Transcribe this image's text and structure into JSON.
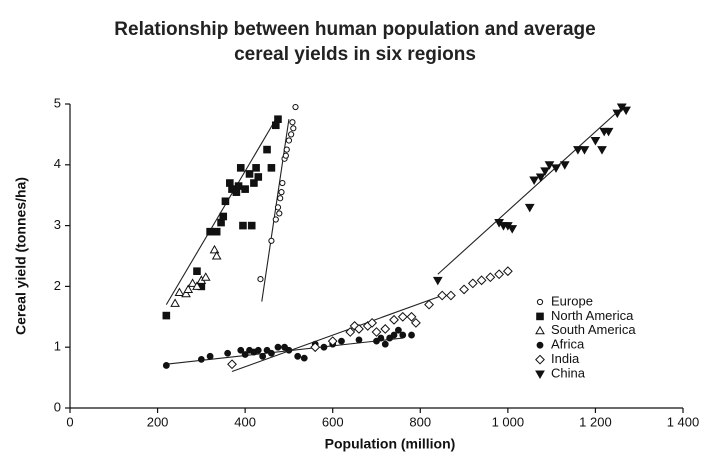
{
  "chart_data": {
    "type": "scatter",
    "title": [
      "Relationship between human population and average",
      "cereal yields in six regions"
    ],
    "xlabel": "Population (million)",
    "ylabel": "Cereal yield (tonnes/ha)",
    "xlim": [
      0,
      1400
    ],
    "ylim": [
      0,
      5
    ],
    "xticks": [
      0,
      200,
      400,
      600,
      800,
      {
        "value": 1000,
        "label": "1 000"
      },
      {
        "value": 1200,
        "label": "1 200"
      },
      {
        "value": 1400,
        "label": "1 400"
      }
    ],
    "yticks": [
      0,
      1,
      2,
      3,
      4,
      5
    ],
    "legend": "right",
    "series": [
      {
        "name": "Europe",
        "marker": "circle-open",
        "color": "#111",
        "x": [
          435,
          460,
          470,
          475,
          478,
          480,
          483,
          485,
          490,
          493,
          495,
          500,
          505,
          508,
          510,
          515
        ],
        "values": [
          2.12,
          2.75,
          3.1,
          3.3,
          3.2,
          3.45,
          3.55,
          3.7,
          4.1,
          4.15,
          4.25,
          4.4,
          4.5,
          4.7,
          4.6,
          4.95
        ],
        "trend_x": [
          438,
          500
        ],
        "trend_y": [
          1.75,
          4.75
        ]
      },
      {
        "name": "North America",
        "marker": "square",
        "color": "#111",
        "x": [
          220,
          290,
          300,
          320,
          335,
          345,
          350,
          355,
          365,
          370,
          380,
          385,
          390,
          395,
          400,
          410,
          415,
          420,
          425,
          430,
          450,
          460,
          470,
          475
        ],
        "values": [
          1.52,
          2.25,
          2.0,
          2.9,
          2.9,
          3.05,
          3.15,
          3.4,
          3.7,
          3.6,
          3.55,
          3.65,
          3.95,
          3.0,
          3.6,
          3.85,
          3.0,
          3.7,
          3.95,
          3.8,
          4.25,
          3.95,
          4.65,
          4.75
        ],
        "trend_x": [
          220,
          470
        ],
        "trend_y": [
          1.7,
          4.75
        ]
      },
      {
        "name": "South America",
        "marker": "triangle-open",
        "color": "#111",
        "x": [
          240,
          250,
          265,
          270,
          280,
          290,
          300,
          310,
          330,
          335
        ],
        "values": [
          1.72,
          1.9,
          1.88,
          1.95,
          2.05,
          2.0,
          2.1,
          2.15,
          2.6,
          2.5
        ]
      },
      {
        "name": "Africa",
        "marker": "circle",
        "color": "#111",
        "x": [
          220,
          300,
          320,
          360,
          390,
          400,
          410,
          420,
          430,
          440,
          450,
          460,
          475,
          490,
          500,
          520,
          535,
          560,
          580,
          600,
          620,
          660,
          700,
          710,
          720,
          730,
          740,
          750,
          760,
          780
        ],
        "values": [
          0.7,
          0.8,
          0.85,
          0.9,
          0.95,
          0.88,
          0.95,
          0.92,
          0.95,
          0.85,
          0.95,
          0.9,
          1.0,
          1.0,
          0.95,
          0.85,
          0.82,
          1.05,
          1.0,
          1.05,
          1.1,
          1.12,
          1.1,
          1.15,
          1.05,
          1.15,
          1.2,
          1.28,
          1.2,
          1.2
        ],
        "trend_x": [
          220,
          760
        ],
        "trend_y": [
          0.72,
          1.15
        ]
      },
      {
        "name": "India",
        "marker": "diamond-open",
        "color": "#111",
        "x": [
          370,
          560,
          600,
          640,
          650,
          660,
          680,
          690,
          700,
          720,
          740,
          760,
          780,
          790,
          820,
          850,
          870,
          900,
          920,
          940,
          960,
          980,
          1000
        ],
        "values": [
          0.72,
          1.0,
          1.1,
          1.25,
          1.35,
          1.3,
          1.35,
          1.4,
          1.25,
          1.3,
          1.45,
          1.5,
          1.5,
          1.4,
          1.7,
          1.85,
          1.85,
          1.95,
          2.05,
          2.1,
          2.15,
          2.2,
          2.25
        ],
        "trend_x": [
          370,
          850
        ],
        "trend_y": [
          0.6,
          1.85
        ]
      },
      {
        "name": "China",
        "marker": "triangle-down",
        "color": "#111",
        "x": [
          840,
          980,
          990,
          1000,
          1010,
          1050,
          1060,
          1075,
          1085,
          1095,
          1110,
          1130,
          1160,
          1175,
          1200,
          1215,
          1220,
          1230,
          1250,
          1260,
          1270
        ],
        "values": [
          2.1,
          3.05,
          3.0,
          3.0,
          2.95,
          3.3,
          3.75,
          3.8,
          3.9,
          4.0,
          3.95,
          4.0,
          4.25,
          4.25,
          4.4,
          4.25,
          4.55,
          4.55,
          4.85,
          4.95,
          4.9
        ],
        "trend_x": [
          840,
          1270
        ],
        "trend_y": [
          2.2,
          5.0
        ]
      }
    ]
  }
}
